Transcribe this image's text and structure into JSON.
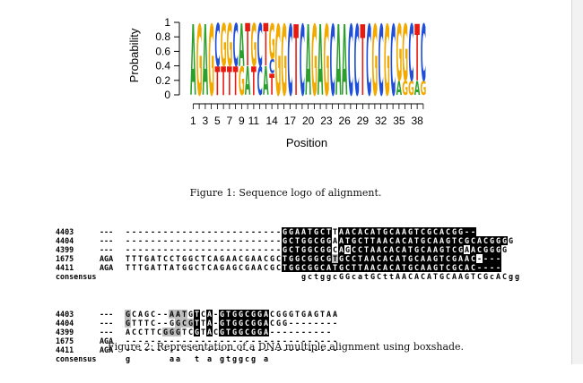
{
  "chart_data": {
    "type": "sequence-logo",
    "ylabel": "Probability",
    "xlabel": "Position",
    "yticks": [
      "0",
      "0.2",
      "0.4",
      "0.6",
      "0.8",
      "1"
    ],
    "xtick_labels": [
      "1",
      "3",
      "5",
      "7",
      "9",
      "11",
      "14",
      "17",
      "20",
      "23",
      "26",
      "29",
      "32",
      "35",
      "38"
    ],
    "xtick_positions": [
      1,
      3,
      5,
      7,
      9,
      11,
      14,
      17,
      20,
      23,
      26,
      29,
      32,
      35,
      38
    ],
    "n_positions": 39,
    "base_colors": {
      "A": "#2ca02c",
      "C": "#1f4fd8",
      "G": "#f2a900",
      "T": "#e8190e"
    },
    "logo_stacks": [
      [
        [
          "A",
          1
        ]
      ],
      [
        [
          "G",
          1
        ]
      ],
      [
        [
          "A",
          1
        ]
      ],
      [
        [
          "G",
          1
        ]
      ],
      [
        [
          "T",
          0.4
        ],
        [
          "C",
          0.6
        ]
      ],
      [
        [
          "T",
          0.4
        ],
        [
          "G",
          0.6
        ]
      ],
      [
        [
          "T",
          0.4
        ],
        [
          "G",
          0.6
        ]
      ],
      [
        [
          "T",
          0.4
        ],
        [
          "C",
          0.6
        ]
      ],
      [
        [
          "G",
          0.4
        ],
        [
          "A",
          0.6
        ]
      ],
      [
        [
          "A",
          0.4
        ],
        [
          "T",
          0.6
        ]
      ],
      [
        [
          "T",
          0.4
        ],
        [
          "G",
          0.6
        ]
      ],
      [
        [
          "C",
          0.4
        ],
        [
          "C",
          0.6
        ]
      ],
      [
        [
          "A",
          0.4
        ],
        [
          "T",
          0.6
        ]
      ],
      [
        [
          "T",
          0.3
        ],
        [
          "C",
          0.2
        ],
        [
          "G",
          0.5
        ]
      ],
      [
        [
          "G",
          1
        ]
      ],
      [
        [
          "G",
          1
        ]
      ],
      [
        [
          "C",
          1
        ]
      ],
      [
        [
          "T",
          1
        ]
      ],
      [
        [
          "C",
          1
        ]
      ],
      [
        [
          "A",
          1
        ]
      ],
      [
        [
          "G",
          1
        ]
      ],
      [
        [
          "A",
          1
        ]
      ],
      [
        [
          "G",
          1
        ]
      ],
      [
        [
          "C",
          1
        ]
      ],
      [
        [
          "A",
          1
        ]
      ],
      [
        [
          "A",
          1
        ]
      ],
      [
        [
          "C",
          1
        ]
      ],
      [
        [
          "C",
          1
        ]
      ],
      [
        [
          "T",
          1
        ]
      ],
      [
        [
          "C",
          1
        ]
      ],
      [
        [
          "G",
          1
        ]
      ],
      [
        [
          "C",
          1
        ]
      ],
      [
        [
          "G",
          1
        ]
      ],
      [
        [
          "C",
          1
        ]
      ],
      [
        [
          "A",
          0.2
        ],
        [
          "G",
          0.8
        ]
      ],
      [
        [
          "G",
          0.2
        ],
        [
          "G",
          0.8
        ]
      ],
      [
        [
          "G",
          0.2
        ],
        [
          "C",
          0.8
        ]
      ],
      [
        [
          "A",
          0.2
        ],
        [
          "T",
          0.8
        ]
      ],
      [
        [
          "G",
          0.2
        ],
        [
          "C",
          0.8
        ]
      ]
    ]
  },
  "captions": {
    "figure1": "Figure 1: Sequence logo of alignment.",
    "figure2": "Figure 2: Representation of a DNA multiple alignment using boxshade."
  },
  "alignment": {
    "block1": [
      {
        "name": "4403",
        "prefix": "---",
        "seq": "-------------------------GGAATGCTTAACACATGCAAGTCGCACGG--",
        "shade": "wwwwwwwwwwwwwwwwwwwwwwwwwkkkkkkkkwkkkkkkkkkkkkkkkkkkkkkkk"
      },
      {
        "name": "4404",
        "prefix": "---",
        "seq": "-------------------------GCTGGCGGAATGCTTAACACATGCAAGTCGCACGGGG",
        "shade": "wwwwwwwwwwwwwwwwwwwwwwwwwkkkkkkkkwkkkkkkkkkkkkkkkkkkkkkkkkkkk"
      },
      {
        "name": "4399",
        "prefix": "---",
        "seq": "-------------------------GCTGGCGGCAGCCTAACACATGCAAGTCGAACGGGG",
        "shade": "wwwwwwwwwwwwwwwwwwwwwwwwwkkkkkkkkwkwkkkkkkkkkkkkkkkkkkwkkkkk"
      },
      {
        "name": "1675",
        "prefix": "AGA",
        "seq": "TTTGATCCTGGCTCAGAACGAACGCTGGCGGCGTGCCTAACACATGCAAGTCGAAC----",
        "shade": "wwwwwwwwwwwwwwwwwwwwwwwwwkkkkkkkkgkkkkkkkkkkkkkkkkkkkkkkwkkk"
      },
      {
        "name": "4411",
        "prefix": "AGA",
        "seq": "TTTGATTATGGCTCAGAGCGAACGCTGGCGGCATGCTTAACACATGCAAGTCGCAC----",
        "shade": "wwwwwwwwwwwwwwwwwwwwwwwwwkkkkkkkkkkkkkkkkkkkkkkkkkkkkkkkkkkk"
      },
      {
        "name": "consensus",
        "prefix": "",
        "seq": "gctggcGGcatGCttAACACATGCAAGTCGcACgg",
        "shade": "",
        "offset": 28
      }
    ],
    "block2": [
      {
        "name": "4403",
        "prefix": "---",
        "seq": "GCAGC--AATGTCA-GTGGCGGACGGGTGAGTAA",
        "shade": "gwwwwwwgggwkwkwkkkkkkkkwwwwwwwwwww"
      },
      {
        "name": "4404",
        "prefix": "---",
        "seq": "GTTTC--GGCGTTA-GTGGCGGACGG--------",
        "shade": "gwwwwwwwgggkwkwkkkkkkkkwwwwwwwwwww"
      },
      {
        "name": "4399",
        "prefix": "---",
        "seq": "ACCTTCGGGTCGTACGTGGCGGA----------",
        "shade": "wwwwwwgggwwkwkwkkkkkkkkwwwwwwwwwww"
      },
      {
        "name": "1675",
        "prefix": "AGA",
        "seq": "----------------------------------",
        "shade": ""
      },
      {
        "name": "4411",
        "prefix": "AGA",
        "seq": "----------------------------------",
        "shade": ""
      },
      {
        "name": "consensus",
        "prefix": "",
        "seq": "g      aa  t a gtggcg a",
        "shade": "",
        "offset": 0
      }
    ]
  }
}
